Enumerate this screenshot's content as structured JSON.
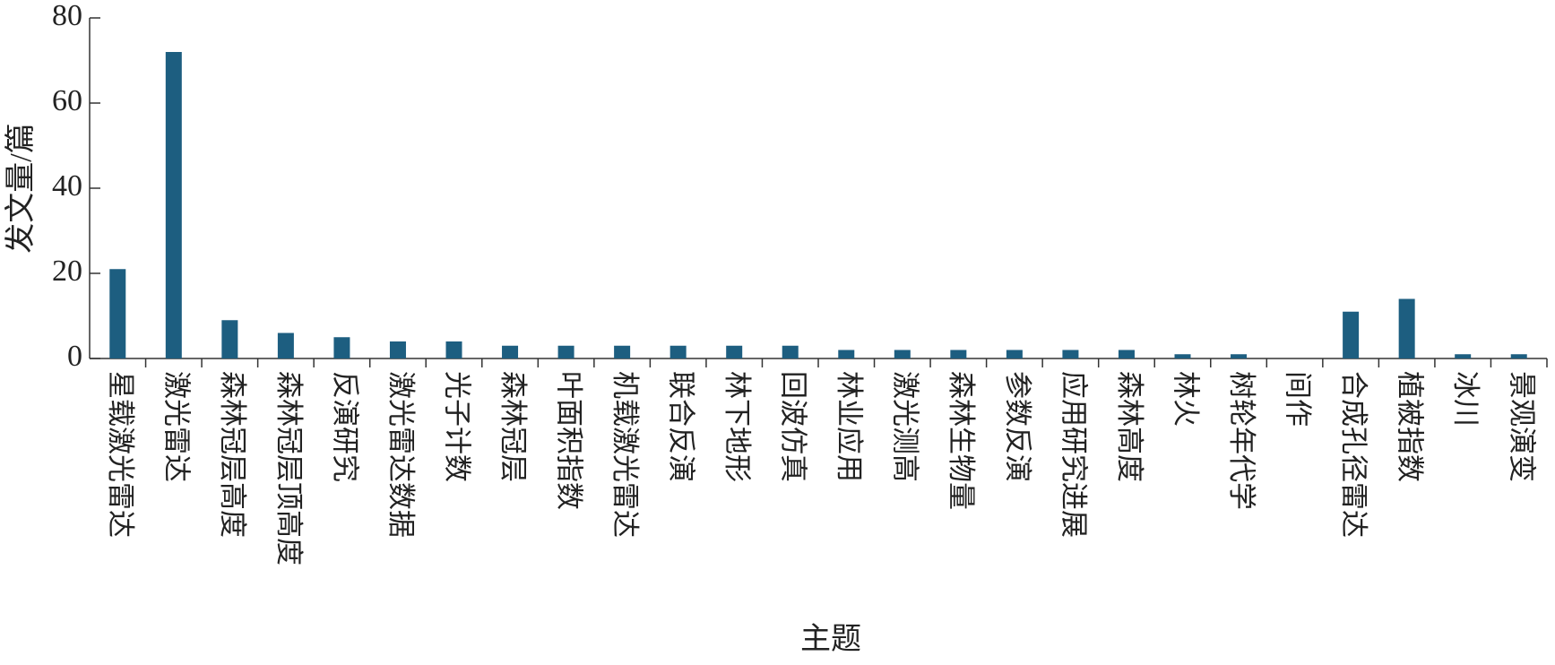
{
  "chart_data": {
    "type": "bar",
    "x_label": "主题",
    "y_label": "发文量/篇",
    "categories": [
      "星载激光雷达",
      "激光雷达",
      "森林冠层高度",
      "森林冠层顶高度",
      "反演研究",
      "激光雷达数据",
      "光子计数",
      "森林冠层",
      "叶面积指数",
      "机载激光雷达",
      "联合反演",
      "林下地形",
      "回波仿真",
      "林业应用",
      "激光测高",
      "森林生物量",
      "参数反演",
      "应用研究进展",
      "森林高度",
      "林火",
      "树轮年代学",
      "间作",
      "合成孔径雷达",
      "植被指数",
      "冰川",
      "景观演变"
    ],
    "values": [
      21,
      72,
      9,
      6,
      5,
      4,
      4,
      3,
      3,
      3,
      3,
      3,
      3,
      2,
      2,
      2,
      2,
      2,
      2,
      1,
      1,
      0,
      11,
      14,
      1,
      1
    ],
    "color": "#1d5e80",
    "ylim": [
      0,
      80
    ],
    "yticks": [
      0,
      20,
      40,
      60,
      80
    ],
    "grid": false
  }
}
